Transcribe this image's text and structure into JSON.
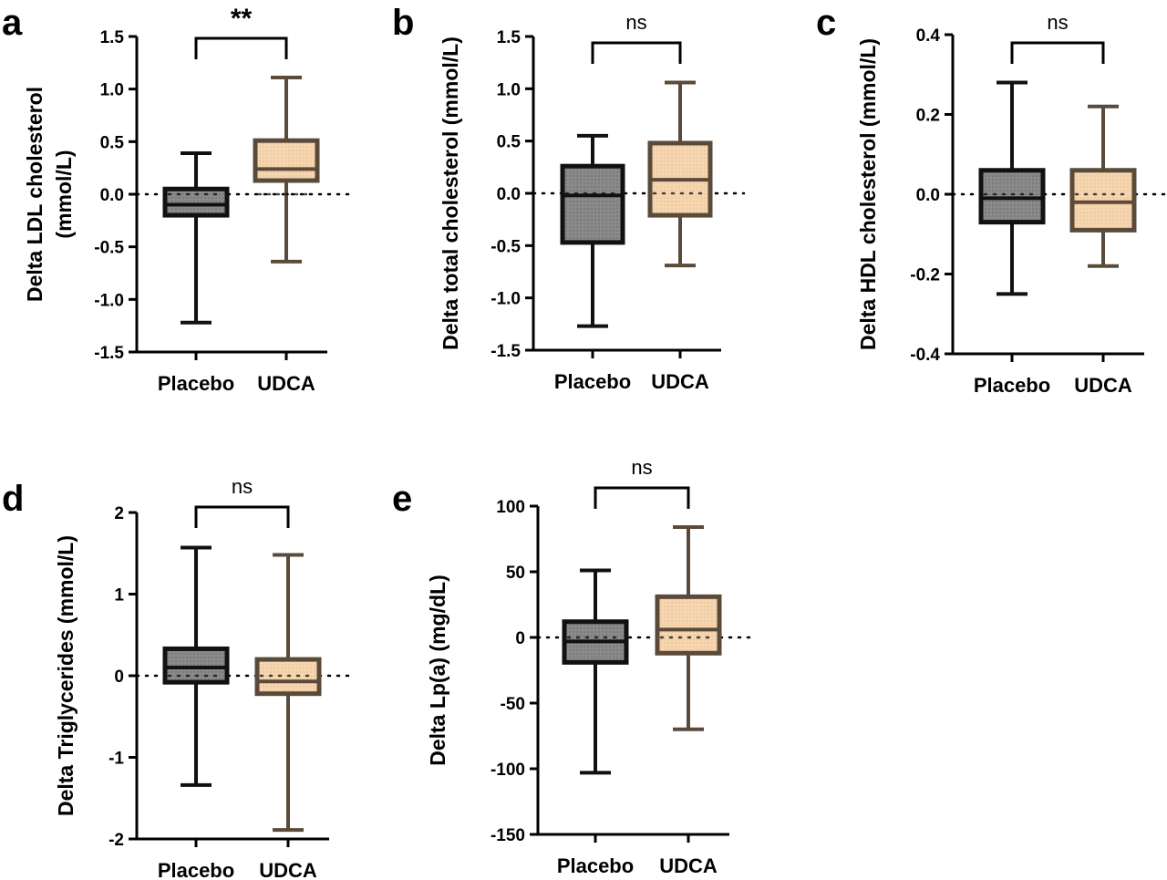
{
  "colors": {
    "placebo_fill": "#8a8a8a",
    "placebo_stroke": "#111111",
    "udca_fill": "#f6d6b0",
    "udca_stroke": "#5a4a3a",
    "axis": "#000000"
  },
  "chart_data": [
    {
      "type": "box",
      "panel": "a",
      "ylabel": "Delta LDL cholesterol (mmol/L)",
      "ylabel_lines": [
        "Delta LDL cholesterol",
        "(mmol/L)"
      ],
      "ylim": [
        -1.5,
        1.5
      ],
      "yticks": [
        1.5,
        1.0,
        0.5,
        0.0,
        -0.5,
        -1.0,
        -1.5
      ],
      "ytick_labels": [
        "1.5",
        "1.0",
        "0.5",
        "0.0",
        "-0.5",
        "-1.0",
        "-1.5"
      ],
      "categories": [
        "Placebo",
        "UDCA"
      ],
      "boxes": [
        {
          "name": "Placebo",
          "min": -1.22,
          "q1": -0.2,
          "median": -0.1,
          "q3": 0.05,
          "max": 0.39
        },
        {
          "name": "UDCA",
          "min": -0.64,
          "q1": 0.13,
          "median": 0.24,
          "q3": 0.51,
          "max": 1.11
        }
      ],
      "reference_line": 0,
      "significance": "**"
    },
    {
      "type": "box",
      "panel": "b",
      "ylabel": "Delta total cholesterol (mmol/L)",
      "ylabel_lines": [
        "Delta total cholesterol (mmol/L)"
      ],
      "ylim": [
        -1.5,
        1.5
      ],
      "yticks": [
        1.5,
        1.0,
        0.5,
        0.0,
        -0.5,
        -1.0,
        -1.5
      ],
      "ytick_labels": [
        "1.5",
        "1.0",
        "0.5",
        "0.0",
        "-0.5",
        "-1.0",
        "-1.5"
      ],
      "categories": [
        "Placebo",
        "UDCA"
      ],
      "boxes": [
        {
          "name": "Placebo",
          "min": -1.27,
          "q1": -0.47,
          "median": -0.02,
          "q3": 0.26,
          "max": 0.55
        },
        {
          "name": "UDCA",
          "min": -0.69,
          "q1": -0.21,
          "median": 0.13,
          "q3": 0.48,
          "max": 1.06
        }
      ],
      "reference_line": 0,
      "significance": "ns"
    },
    {
      "type": "box",
      "panel": "c",
      "ylabel": "Delta HDL cholesterol (mmol/L)",
      "ylabel_lines": [
        "Delta HDL cholesterol (mmol/L)"
      ],
      "ylim": [
        -0.4,
        0.4
      ],
      "yticks": [
        0.4,
        0.2,
        0.0,
        -0.2,
        -0.4
      ],
      "ytick_labels": [
        "0.4",
        "0.2",
        "0.0",
        "-0.2",
        "-0.4"
      ],
      "categories": [
        "Placebo",
        "UDCA"
      ],
      "boxes": [
        {
          "name": "Placebo",
          "min": -0.25,
          "q1": -0.07,
          "median": -0.01,
          "q3": 0.06,
          "max": 0.28
        },
        {
          "name": "UDCA",
          "min": -0.18,
          "q1": -0.09,
          "median": -0.02,
          "q3": 0.06,
          "max": 0.22
        }
      ],
      "reference_line": 0,
      "significance": "ns"
    },
    {
      "type": "box",
      "panel": "d",
      "ylabel": "Delta Triglycerides (mmol/L)",
      "ylabel_lines": [
        "Delta Triglycerides (mmol/L)"
      ],
      "ylim": [
        -2,
        2
      ],
      "yticks": [
        2,
        1,
        0,
        -1,
        -2
      ],
      "ytick_labels": [
        "2",
        "1",
        "0",
        "-1",
        "-2"
      ],
      "categories": [
        "Placebo",
        "UDCA"
      ],
      "boxes": [
        {
          "name": "Placebo",
          "min": -1.34,
          "q1": -0.08,
          "median": 0.1,
          "q3": 0.33,
          "max": 1.57
        },
        {
          "name": "UDCA",
          "min": -1.89,
          "q1": -0.22,
          "median": -0.07,
          "q3": 0.2,
          "max": 1.48
        }
      ],
      "reference_line": 0,
      "significance": "ns"
    },
    {
      "type": "box",
      "panel": "e",
      "ylabel": "Delta Lp(a) (mg/dL)",
      "ylabel_lines": [
        "Delta Lp(a) (mg/dL)"
      ],
      "ylim": [
        -150,
        100
      ],
      "yticks": [
        100,
        50,
        0,
        -50,
        -100,
        -150
      ],
      "ytick_labels": [
        "100",
        "50",
        "0",
        "-50",
        "-100",
        "-150"
      ],
      "categories": [
        "Placebo",
        "UDCA"
      ],
      "boxes": [
        {
          "name": "Placebo",
          "min": -103,
          "q1": -19,
          "median": -3,
          "q3": 12,
          "max": 51
        },
        {
          "name": "UDCA",
          "min": -70,
          "q1": -12,
          "median": 6,
          "q3": 31,
          "max": 84
        }
      ],
      "reference_line": 0,
      "significance": "ns"
    }
  ]
}
